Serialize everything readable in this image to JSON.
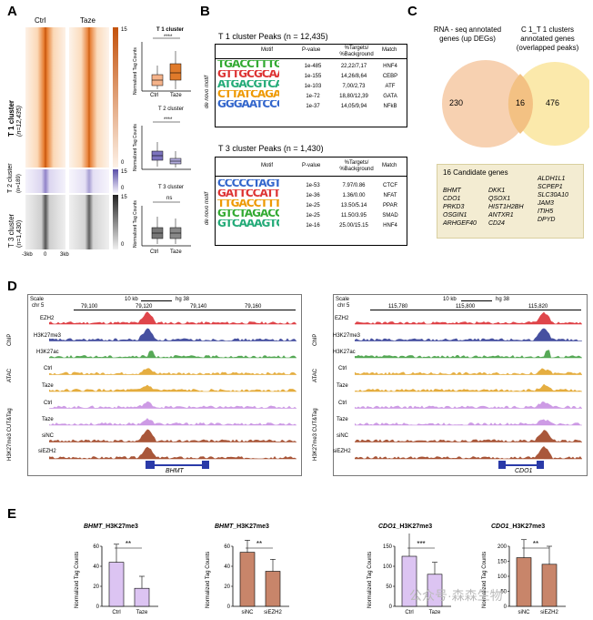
{
  "panels": {
    "a": "A",
    "b": "B",
    "c": "C",
    "d": "D",
    "e": "E"
  },
  "panelA": {
    "col_ctrl": "Ctrl",
    "col_taze": "Taze",
    "row1": "T 1 cluster",
    "row1_n": "(n=12,435)",
    "row2": "T 2 cluster",
    "row2_n": "(n=189)",
    "row3": "T 3 cluster",
    "row3_n": "(n=1,430)",
    "axis_left": "-3kb",
    "axis_mid": "0",
    "axis_right": "3kb",
    "scale_top": "15",
    "scale_bottom": "0",
    "box1_title": "T 1 cluster",
    "box2_title": "T 2 cluster",
    "box3_title": "T 3 cluster",
    "box_ylabel": "Normalized Tag Counts",
    "sig1": "****",
    "sig2": "****",
    "sig3": "ns",
    "box_xctrl": "Ctrl",
    "box_xtaze": "Taze",
    "colors": {
      "t1": "#e07a2a",
      "t2": "#5a4fa8",
      "t3": "#333333"
    }
  },
  "panelB": {
    "title1": "T 1 cluster Peaks (n = 12,435)",
    "title2": "T 3 cluster Peaks (n = 1,430)",
    "hdr_motif": "Motif",
    "hdr_p": "P-value",
    "hdr_targets": "%Targets/ %Background",
    "hdr_match": "Match",
    "side_label": "de novo motif",
    "t1_rows": [
      {
        "p": "1e-485",
        "t": "22,22/7,17",
        "m": "HNF4"
      },
      {
        "p": "1e-155",
        "t": "14,26/8,64",
        "m": "CEBP"
      },
      {
        "p": "1e-103",
        "t": "7,00/2,73",
        "m": "ATF"
      },
      {
        "p": "1e-72",
        "t": "18,80/12,39",
        "m": "GATA"
      },
      {
        "p": "1e-37",
        "t": "14,05/9,94",
        "m": "NFkB"
      }
    ],
    "t3_rows": [
      {
        "p": "1e-53",
        "t": "7.97/0.86",
        "m": "CTCF"
      },
      {
        "p": "1e-36",
        "t": "1.36/0.00",
        "m": "NFAT"
      },
      {
        "p": "1e-25",
        "t": "13.50/5.14",
        "m": "PPAR"
      },
      {
        "p": "1e-25",
        "t": "11.50/3.95",
        "m": "SMAD"
      },
      {
        "p": "1e-16",
        "t": "25.00/15.15",
        "m": "HNF4"
      }
    ],
    "t1_logos": [
      "TGACCTTTGACC",
      "GTTGCGCAAT",
      "ATGACGTCAT",
      "CTTATCAGA",
      "GGGAATCCC"
    ],
    "t3_logos": [
      "CCCCCTAGTGG",
      "GATTCCATTCAA",
      "TTGACCTTTG",
      "GTCTAGACCA",
      "GTCAAAGTCCA"
    ]
  },
  "panelC": {
    "left_label": "RNA - seq annotated genes (up DEGs)",
    "right_label": "C 1_T 1 clusters annotated genes (overlapped peaks)",
    "left_only": "230",
    "overlap": "16",
    "right_only": "476",
    "candidates_title": "16 Candidate genes",
    "genes_col1": [
      "BHMT",
      "CDO1",
      "PRKD3",
      "OSGIN1",
      "ARHGEF40"
    ],
    "genes_col2": [
      "DKK1",
      "QSOX1",
      "HIST1H2BH",
      "ANTXR1",
      "CD24"
    ],
    "genes_col3": [
      "ALDH1L1",
      "SCPEP1",
      "SLC30A10",
      "JAM3",
      "ITIH5",
      "DPYD"
    ]
  },
  "panelD": {
    "scale_word": "Scale",
    "chr_left": "chr 5",
    "chr_right": "chr 5",
    "kb_label": "10 kb",
    "hg_label": "hg 38",
    "left_ticks": [
      "79,100",
      "79,120",
      "79,140",
      "79,160"
    ],
    "right_ticks": [
      "115,780",
      "115,800",
      "115,820"
    ],
    "group_chip": "ChIP",
    "group_atac": "ATAC",
    "group_cuttag": "H3K27me3 CUT&Tag",
    "tracks": [
      "EZH2",
      "H3K27me3",
      "H3K27ac",
      "Ctrl",
      "Taze",
      "Ctrl",
      "Taze",
      "siNC",
      "siEZH2"
    ],
    "gene_left": "BHMT",
    "gene_right": "CDO1"
  },
  "panelE": {
    "ylabel": "Normalized Tag Counts",
    "sig": "**",
    "sig3": "***",
    "charts": [
      {
        "title_gene": "BHMT",
        "title_suffix": "_H3K27me3",
        "cats": [
          "Ctrl",
          "Taze"
        ],
        "ticks": [
          "0",
          "20",
          "40",
          "60"
        ]
      },
      {
        "title_gene": "BHMT",
        "title_suffix": "_H3K27me3",
        "cats": [
          "siNC",
          "siEZH2"
        ],
        "ticks": [
          "0",
          "20",
          "40",
          "60"
        ]
      },
      {
        "title_gene": "CDO1",
        "title_suffix": "_H3K27me3",
        "cats": [
          "Ctrl",
          "Taze"
        ],
        "ticks": [
          "0",
          "50",
          "100",
          "150"
        ]
      },
      {
        "title_gene": "CDO1",
        "title_suffix": "_H3K27me3",
        "cats": [
          "siNC",
          "siEZH2"
        ],
        "ticks": [
          "0",
          "50",
          "100",
          "150",
          "200"
        ]
      }
    ],
    "watermark": "公众号·森森生物"
  },
  "chart_data": [
    {
      "type": "bar",
      "title": "BHMT_H3K27me3",
      "ylabel": "Normalized Tag Counts",
      "categories": [
        "Ctrl",
        "Taze"
      ],
      "values": [
        44,
        18
      ],
      "ylim": [
        0,
        60
      ]
    },
    {
      "type": "bar",
      "title": "BHMT_H3K27me3",
      "ylabel": "Normalized Tag Counts",
      "categories": [
        "siNC",
        "siEZH2"
      ],
      "values": [
        54,
        35
      ],
      "ylim": [
        0,
        60
      ]
    },
    {
      "type": "bar",
      "title": "CDO1_H3K27me3",
      "ylabel": "Normalized Tag Counts",
      "categories": [
        "Ctrl",
        "Taze"
      ],
      "values": [
        125,
        80
      ],
      "ylim": [
        0,
        150
      ]
    },
    {
      "type": "bar",
      "title": "CDO1_H3K27me3",
      "ylabel": "Normalized Tag Counts",
      "categories": [
        "siNC",
        "siEZH2"
      ],
      "values": [
        162,
        140
      ],
      "ylim": [
        0,
        200
      ]
    }
  ]
}
